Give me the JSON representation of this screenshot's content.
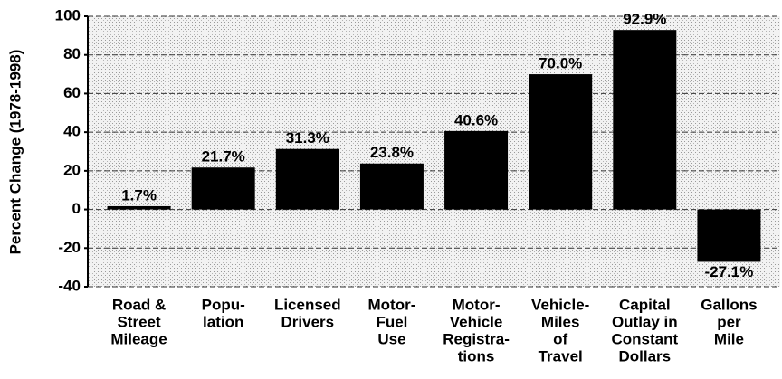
{
  "chart_data": {
    "type": "bar",
    "ylabel": "Percent Change (1978-1998)",
    "categories": [
      [
        "Road &",
        "Street",
        "Mileage"
      ],
      [
        "Popu-",
        "lation"
      ],
      [
        "Licensed",
        "Drivers"
      ],
      [
        "Motor-",
        "Fuel",
        "Use"
      ],
      [
        "Motor-",
        "Vehicle",
        "Registra-",
        "tions"
      ],
      [
        "Vehicle-",
        "Miles",
        "of",
        "Travel"
      ],
      [
        "Capital",
        "Outlay in",
        "Constant",
        "Dollars"
      ],
      [
        "Gallons",
        "per",
        "Mile"
      ]
    ],
    "values": [
      1.7,
      21.7,
      31.3,
      23.8,
      40.6,
      70.0,
      92.9,
      -27.1
    ],
    "value_labels": [
      "1.7%",
      "21.7%",
      "31.3%",
      "23.8%",
      "40.6%",
      "70.0%",
      "92.9%",
      "-27.1%"
    ],
    "color": "#000000",
    "ylim": [
      -40,
      100
    ],
    "yticks": [
      -40,
      -20,
      0,
      20,
      40,
      60,
      80,
      100
    ],
    "grid": true
  }
}
